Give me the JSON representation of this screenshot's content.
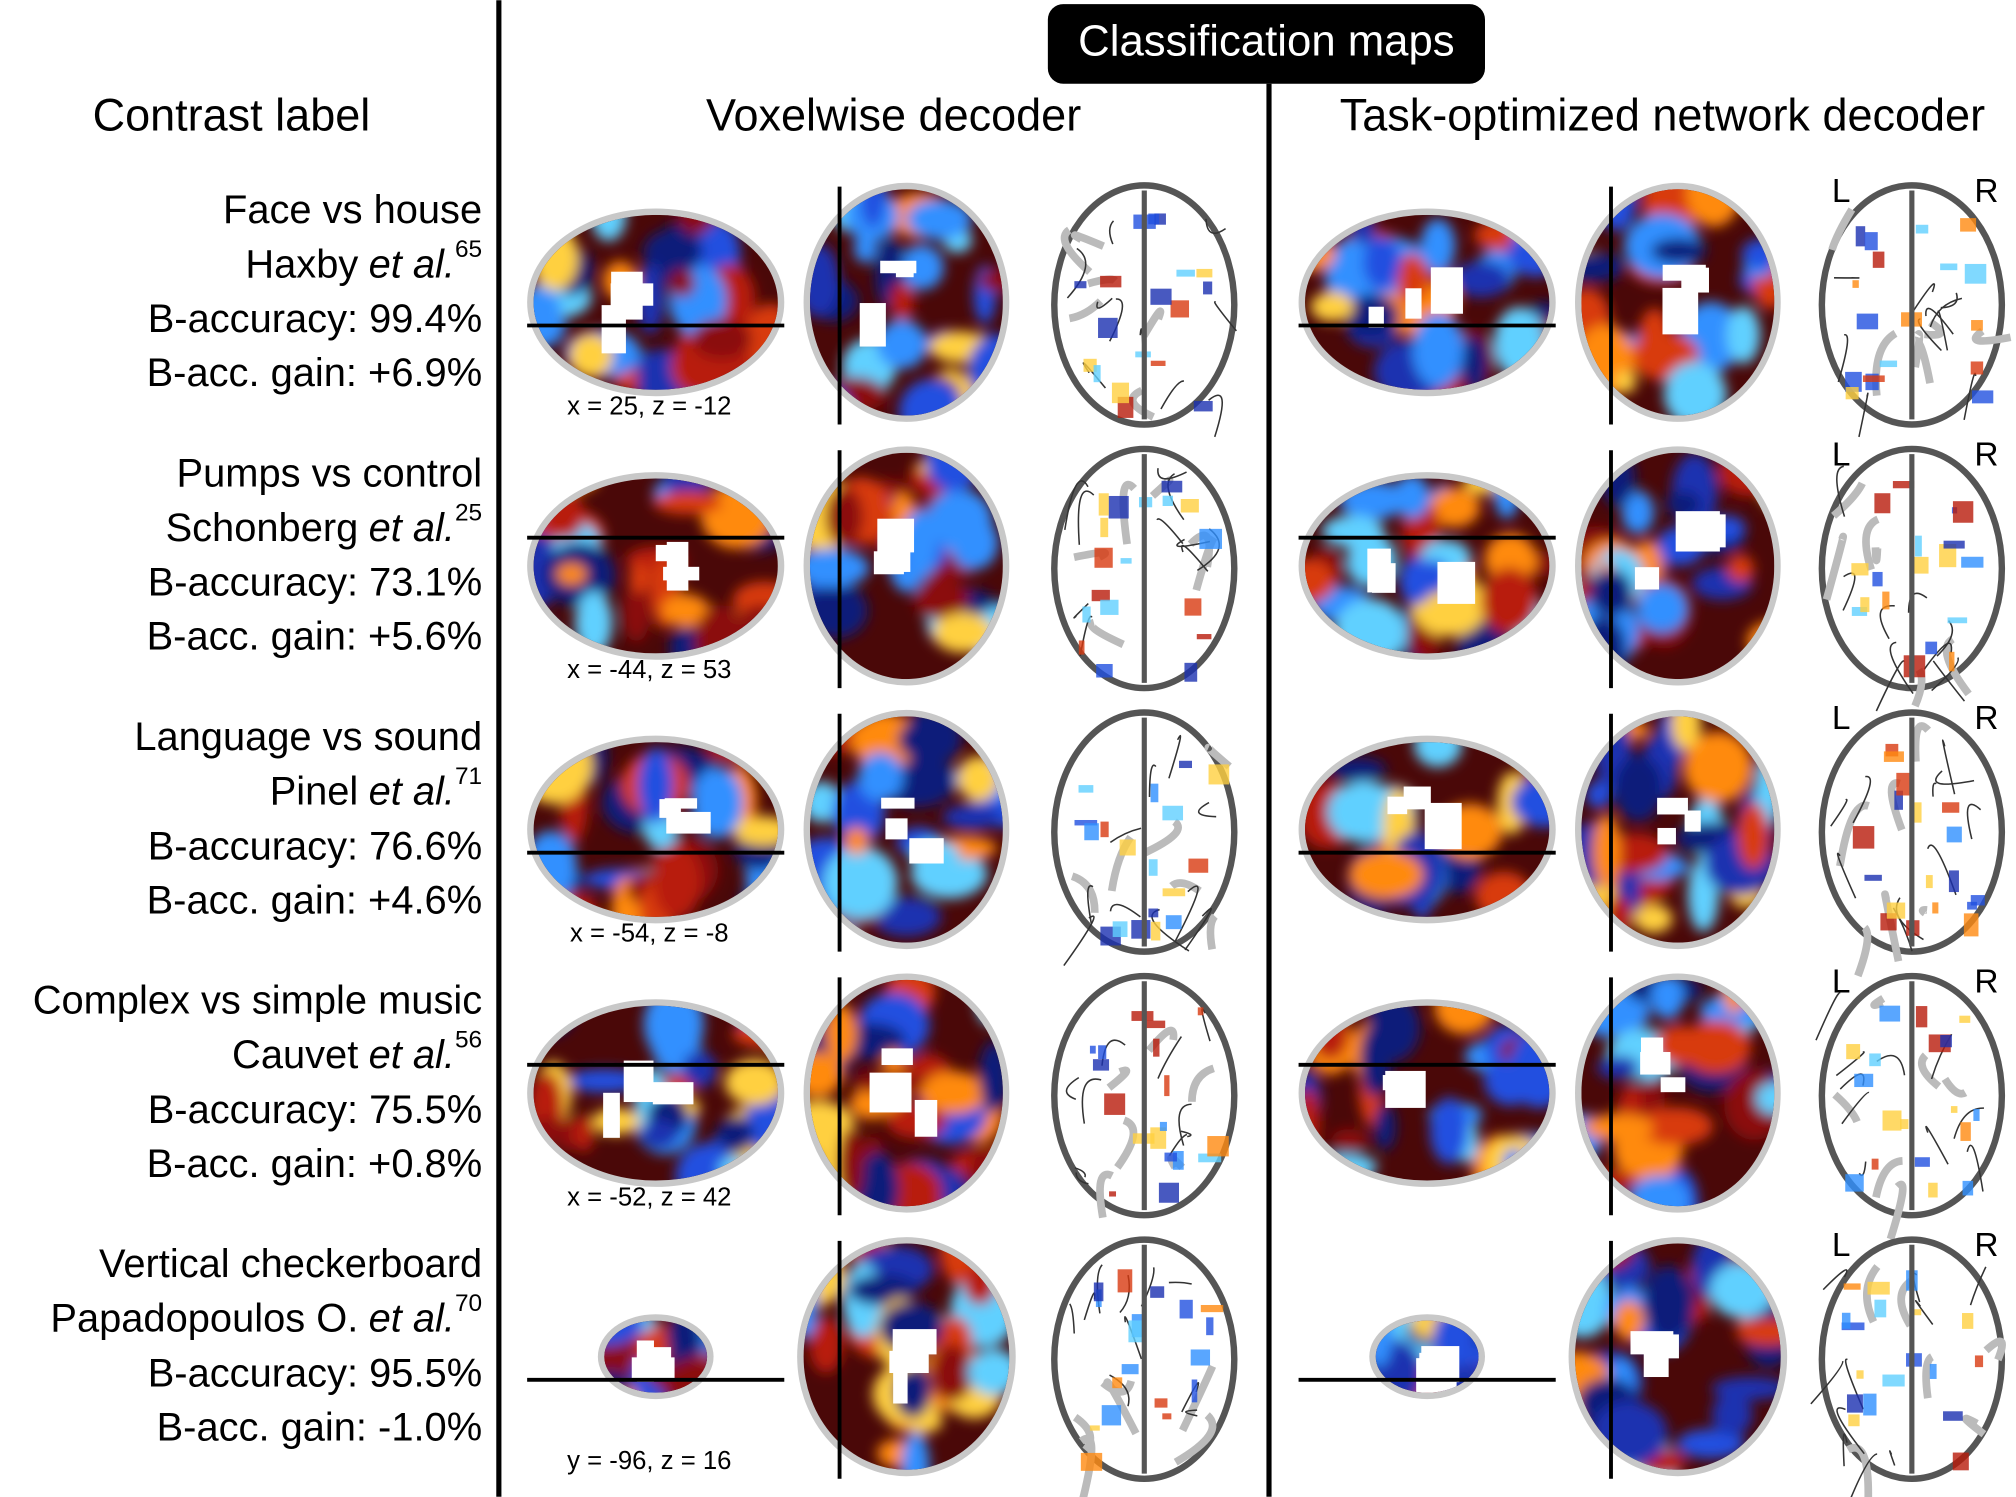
{
  "header": {
    "title": "Classification maps",
    "contrast_column": "Contrast label",
    "decoders": [
      "Voxelwise decoder",
      "Task-optimized network decoder"
    ]
  },
  "hemisphere_labels": [
    "L",
    "R"
  ],
  "rows": [
    {
      "contrast": "Face vs house",
      "author": "Haxby",
      "etal": "et al.",
      "ref": "65",
      "accuracy": "B-accuracy: 99.4%",
      "gain": "B-acc. gain: +6.9%",
      "coords": "x = 25, z = -12"
    },
    {
      "contrast": "Pumps vs control",
      "author": "Schonberg",
      "etal": "et al.",
      "ref": "25",
      "accuracy": "B-accuracy: 73.1%",
      "gain": "B-acc. gain: +5.6%",
      "coords": "x = -44, z = 53"
    },
    {
      "contrast": "Language vs sound",
      "author": "Pinel",
      "etal": "et al.",
      "ref": "71",
      "accuracy": "B-accuracy: 76.6%",
      "gain": "B-acc. gain: +4.6%",
      "coords": "x = -54, z = -8"
    },
    {
      "contrast": "Complex vs simple music",
      "author": "Cauvet",
      "etal": "et al.",
      "ref": "56",
      "accuracy": "B-accuracy: 75.5%",
      "gain": "B-acc. gain: +0.8%",
      "coords": "x = -52, z = 42"
    },
    {
      "contrast": "Vertical checkerboard",
      "author": "Papadopoulos O.",
      "etal": "et al.",
      "ref": "70",
      "accuracy": "B-accuracy: 95.5%",
      "gain": "B-acc. gain: -1.0%",
      "coords": "y = -96, z = 16"
    }
  ]
}
